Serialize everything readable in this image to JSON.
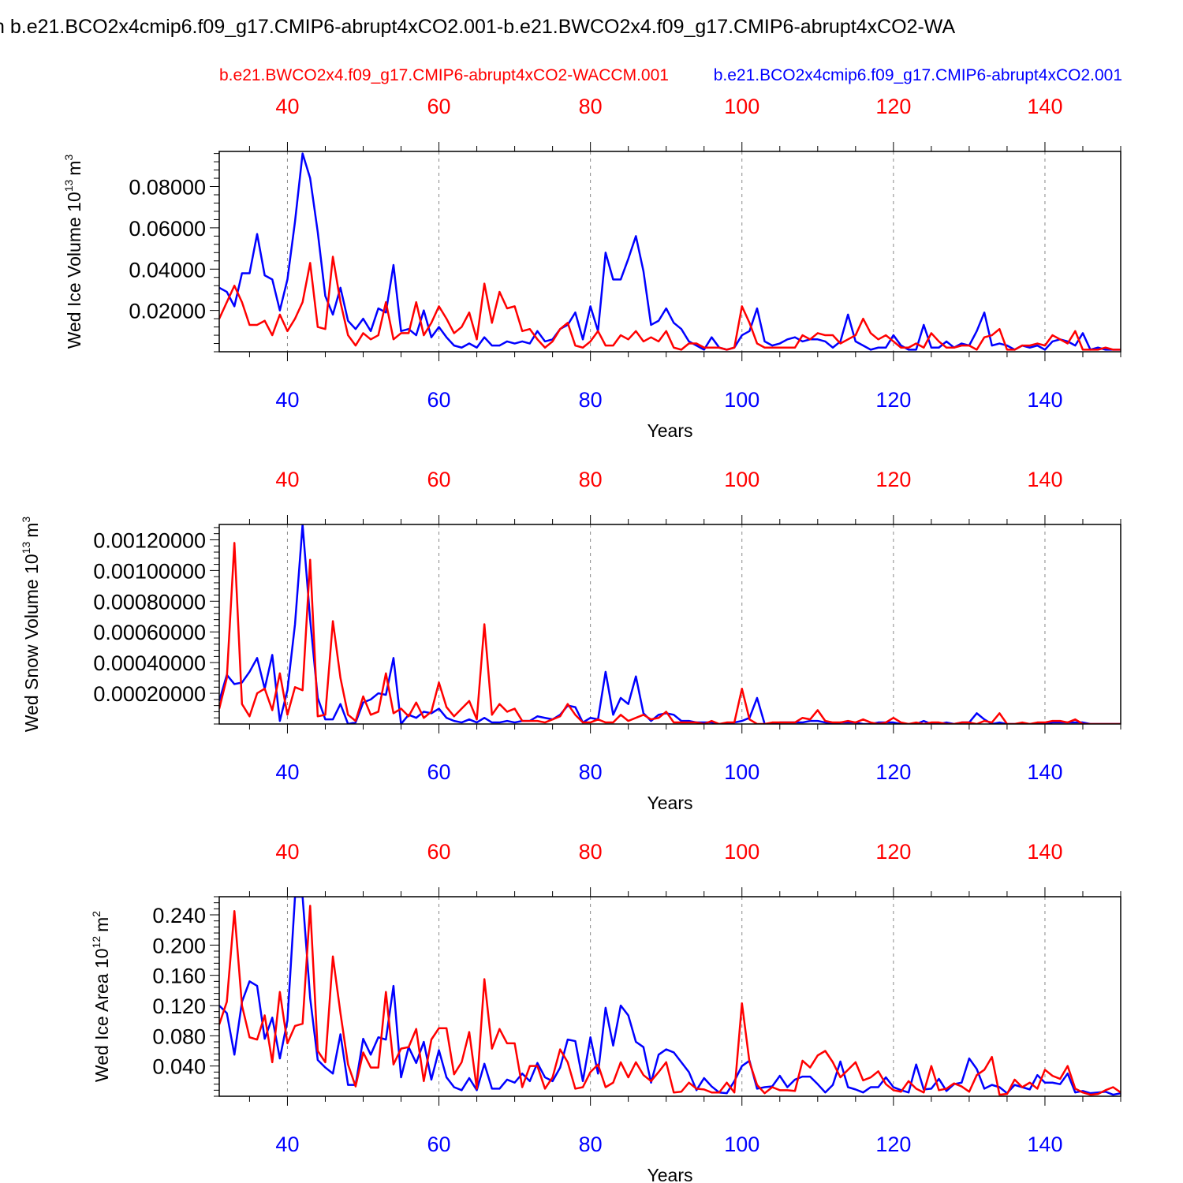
{
  "page": {
    "title": "n b.e21.BCO2x4cmip6.f09_g17.CMIP6-abrupt4xCO2.001-b.e21.BWCO2x4.f09_g17.CMIP6-abrupt4xCO2-WA"
  },
  "legend": {
    "red_label": "b.e21.BWCO2x4.f09_g17.CMIP6-abrupt4xCO2-WACCM.001",
    "blue_label": "b.e21.BCO2x4cmip6.f09_g17.CMIP6-abrupt4xCO2.001"
  },
  "colors": {
    "red": "#ff0000",
    "blue": "#0000ff",
    "axis": "#000000",
    "grid": "#888888"
  },
  "chart_data": [
    {
      "type": "line",
      "ylabel": "Wed Ice Volume 10",
      "ylabel_sup": "13",
      "ylabel_unit": "m",
      "ylabel_unit_sup": "3",
      "xlabel": "Years",
      "xlim": [
        31,
        150
      ],
      "ylim": [
        0,
        0.097
      ],
      "xticks": [
        40,
        60,
        80,
        100,
        120,
        140
      ],
      "xtick_labels": [
        "40",
        "60",
        "80",
        "100",
        "120",
        "140"
      ],
      "yticks": [
        0.02,
        0.04,
        0.06,
        0.08
      ],
      "ytick_labels": [
        "0.02000",
        "0.04000",
        "0.06000",
        "0.08000"
      ],
      "x_start": 31,
      "series": [
        {
          "name": "b.e21.BCO2x4cmip6.f09_g17.CMIP6-abrupt4xCO2.001",
          "color": "blue",
          "values": [
            0.031,
            0.029,
            0.022,
            0.038,
            0.038,
            0.057,
            0.037,
            0.035,
            0.02,
            0.035,
            0.063,
            0.096,
            0.084,
            0.058,
            0.027,
            0.018,
            0.031,
            0.015,
            0.011,
            0.016,
            0.01,
            0.021,
            0.019,
            0.042,
            0.01,
            0.011,
            0.008,
            0.02,
            0.007,
            0.012,
            0.007,
            0.003,
            0.002,
            0.004,
            0.002,
            0.007,
            0.003,
            0.003,
            0.005,
            0.004,
            0.005,
            0.004,
            0.01,
            0.005,
            0.006,
            0.011,
            0.013,
            0.019,
            0.006,
            0.022,
            0.01,
            0.048,
            0.035,
            0.035,
            0.045,
            0.056,
            0.039,
            0.013,
            0.015,
            0.021,
            0.014,
            0.011,
            0.005,
            0.003,
            0.001,
            0.007,
            0.002,
            0.001,
            0.002,
            0.008,
            0.01,
            0.021,
            0.005,
            0.003,
            0.004,
            0.006,
            0.007,
            0.005,
            0.006,
            0.006,
            0.005,
            0.002,
            0.005,
            0.018,
            0.005,
            0.003,
            0.001,
            0.002,
            0.002,
            0.008,
            0.003,
            0.001,
            0.001,
            0.013,
            0.002,
            0.002,
            0.005,
            0.002,
            0.004,
            0.003,
            0.01,
            0.019,
            0.003,
            0.004,
            0.003,
            0.001,
            0.003,
            0.002,
            0.003,
            0.001,
            0.005,
            0.006,
            0.005,
            0.003,
            0.009,
            0.001,
            0.002,
            0.001,
            0.001,
            0.001
          ]
        },
        {
          "name": "b.e21.BWCO2x4.f09_g17.CMIP6-abrupt4xCO2-WACCM.001",
          "color": "red",
          "values": [
            0.016,
            0.024,
            0.032,
            0.024,
            0.013,
            0.013,
            0.015,
            0.008,
            0.018,
            0.01,
            0.016,
            0.024,
            0.043,
            0.012,
            0.011,
            0.046,
            0.024,
            0.008,
            0.003,
            0.009,
            0.006,
            0.008,
            0.024,
            0.006,
            0.009,
            0.009,
            0.024,
            0.008,
            0.014,
            0.022,
            0.016,
            0.009,
            0.012,
            0.019,
            0.006,
            0.033,
            0.014,
            0.029,
            0.021,
            0.022,
            0.01,
            0.011,
            0.006,
            0.002,
            0.005,
            0.011,
            0.014,
            0.003,
            0.002,
            0.005,
            0.01,
            0.003,
            0.003,
            0.008,
            0.006,
            0.01,
            0.005,
            0.007,
            0.005,
            0.01,
            0.002,
            0.001,
            0.004,
            0.004,
            0.002,
            0.002,
            0.002,
            0.001,
            0.002,
            0.022,
            0.014,
            0.004,
            0.002,
            0.002,
            0.002,
            0.002,
            0.002,
            0.008,
            0.006,
            0.009,
            0.008,
            0.008,
            0.004,
            0.006,
            0.008,
            0.016,
            0.009,
            0.006,
            0.008,
            0.005,
            0.002,
            0.002,
            0.004,
            0.002,
            0.009,
            0.005,
            0.002,
            0.002,
            0.003,
            0.003,
            0.001,
            0.007,
            0.008,
            0.011,
            0.001,
            0.001,
            0.003,
            0.003,
            0.004,
            0.003,
            0.008,
            0.006,
            0.004,
            0.01,
            0.001,
            0.001,
            0.001,
            0.002,
            0.001,
            0.001
          ]
        }
      ]
    },
    {
      "type": "line",
      "ylabel": "Wed Snow Volume 10",
      "ylabel_sup": "13",
      "ylabel_unit": "m",
      "ylabel_unit_sup": "3",
      "xlabel": "Years",
      "xlim": [
        31,
        150
      ],
      "ylim": [
        0,
        0.0013
      ],
      "xticks": [
        40,
        60,
        80,
        100,
        120,
        140
      ],
      "xtick_labels": [
        "40",
        "60",
        "80",
        "100",
        "120",
        "140"
      ],
      "yticks": [
        0.0002,
        0.0004,
        0.0006,
        0.0008,
        0.001,
        0.0012
      ],
      "ytick_labels": [
        "0.00020000",
        "0.00040000",
        "0.00060000",
        "0.00080000",
        "0.00100000",
        "0.00120000"
      ],
      "x_start": 31,
      "series": [
        {
          "name": "b.e21.BCO2x4cmip6.f09_g17.CMIP6-abrupt4xCO2.001",
          "color": "blue",
          "values": [
            0.00015,
            0.00032,
            0.00026,
            0.00027,
            0.00034,
            0.00043,
            0.00023,
            0.00045,
            2e-05,
            0.00022,
            0.00065,
            0.0013,
            0.00068,
            0.00017,
            3e-05,
            3e-05,
            0.00013,
            0.0,
            1e-05,
            0.00014,
            0.00016,
            0.0002,
            0.00019,
            0.00043,
            0.0,
            6e-05,
            4e-05,
            8e-05,
            7e-05,
            0.0001,
            4e-05,
            2e-05,
            1e-05,
            3e-05,
            1e-05,
            4e-05,
            1e-05,
            1e-05,
            2e-05,
            1e-05,
            2e-05,
            2e-05,
            5e-05,
            4e-05,
            3e-05,
            6e-05,
            0.00012,
            0.00011,
            1e-05,
            4e-05,
            3e-05,
            0.00034,
            6e-05,
            0.00017,
            0.00013,
            0.00031,
            7e-05,
            2e-05,
            6e-05,
            7e-05,
            6e-05,
            2e-05,
            2e-05,
            1e-05,
            1e-05,
            1e-05,
            0.0,
            0.0,
            1e-05,
            2e-05,
            4e-05,
            0.00017,
            0.0,
            0.0,
            1e-05,
            1e-05,
            1e-05,
            1e-05,
            2e-05,
            2e-05,
            1e-05,
            0.0,
            1e-05,
            1e-05,
            1e-05,
            0.0,
            0.0,
            1e-05,
            1e-05,
            1e-05,
            0.0,
            0.0,
            0.0,
            2e-05,
            0.0,
            0.0,
            1e-05,
            0.0,
            1e-05,
            1e-05,
            7e-05,
            3e-05,
            0.0,
            1e-05,
            0.0,
            0.0,
            0.0,
            0.0,
            0.0,
            0.0,
            1e-05,
            1e-05,
            1e-05,
            1e-05,
            1e-05,
            0.0,
            0.0,
            0.0,
            0.0,
            0.0
          ]
        },
        {
          "name": "b.e21.BWCO2x4.f09_g17.CMIP6-abrupt4xCO2-WACCM.001",
          "color": "red",
          "values": [
            0.0001,
            0.0003,
            0.00118,
            0.00013,
            5e-05,
            0.0002,
            0.00023,
            9e-05,
            0.00033,
            6e-05,
            0.00024,
            0.00022,
            0.00107,
            5e-05,
            6e-05,
            0.00067,
            0.0003,
            6e-05,
            2e-05,
            0.00018,
            6e-05,
            8e-05,
            0.00033,
            7e-05,
            0.0001,
            5e-05,
            0.00014,
            4e-05,
            8e-05,
            0.00027,
            0.00011,
            5e-05,
            0.0001,
            0.00015,
            3e-05,
            0.00065,
            6e-05,
            0.00013,
            8e-05,
            0.0001,
            2e-05,
            2e-05,
            2e-05,
            1e-05,
            3e-05,
            5e-05,
            0.00013,
            6e-05,
            1e-05,
            1e-05,
            3e-05,
            1e-05,
            1e-05,
            6e-05,
            2e-05,
            4e-05,
            6e-05,
            3e-05,
            4e-05,
            8e-05,
            1e-05,
            1e-05,
            1e-05,
            1e-05,
            0.0,
            2e-05,
            0.0,
            1e-05,
            1e-05,
            0.00023,
            3e-05,
            0.0,
            0.0,
            1e-05,
            1e-05,
            1e-05,
            1e-05,
            4e-05,
            3e-05,
            9e-05,
            2e-05,
            1e-05,
            1e-05,
            2e-05,
            1e-05,
            3e-05,
            1e-05,
            0.0,
            1e-05,
            4e-05,
            1e-05,
            0.0,
            1e-05,
            0.0,
            1e-05,
            1e-05,
            0.0,
            0.0,
            1e-05,
            1e-05,
            0.0,
            2e-05,
            1e-05,
            7e-05,
            0.0,
            0.0,
            1e-05,
            0.0,
            1e-05,
            1e-05,
            2e-05,
            2e-05,
            1e-05,
            3e-05,
            0.0,
            0.0,
            0.0,
            0.0,
            0.0,
            0.0
          ]
        }
      ]
    },
    {
      "type": "line",
      "ylabel": "Wed Ice Area 10",
      "ylabel_sup": "12",
      "ylabel_unit": "m",
      "ylabel_unit_sup": "2",
      "xlabel": "Years",
      "xlim": [
        31,
        150
      ],
      "ylim": [
        0,
        0.264
      ],
      "xticks": [
        40,
        60,
        80,
        100,
        120,
        140
      ],
      "xtick_labels": [
        "40",
        "60",
        "80",
        "100",
        "120",
        "140"
      ],
      "yticks": [
        0.04,
        0.08,
        0.12,
        0.16,
        0.2,
        0.24
      ],
      "ytick_labels": [
        "0.040",
        "0.080",
        "0.120",
        "0.160",
        "0.200",
        "0.240"
      ],
      "x_start": 31,
      "series": [
        {
          "name": "b.e21.BCO2x4cmip6.f09_g17.CMIP6-abrupt4xCO2.001",
          "color": "blue",
          "values": [
            0.12,
            0.11,
            0.055,
            0.125,
            0.152,
            0.146,
            0.076,
            0.104,
            0.05,
            0.1,
            0.264,
            0.264,
            0.13,
            0.048,
            0.038,
            0.03,
            0.082,
            0.015,
            0.015,
            0.076,
            0.055,
            0.078,
            0.075,
            0.146,
            0.025,
            0.065,
            0.044,
            0.072,
            0.022,
            0.061,
            0.025,
            0.012,
            0.008,
            0.024,
            0.008,
            0.043,
            0.01,
            0.01,
            0.022,
            0.018,
            0.03,
            0.02,
            0.044,
            0.025,
            0.02,
            0.038,
            0.075,
            0.073,
            0.02,
            0.078,
            0.03,
            0.117,
            0.067,
            0.12,
            0.107,
            0.072,
            0.065,
            0.018,
            0.055,
            0.062,
            0.058,
            0.045,
            0.032,
            0.008,
            0.024,
            0.013,
            0.005,
            0.004,
            0.02,
            0.04,
            0.047,
            0.01,
            0.012,
            0.013,
            0.027,
            0.012,
            0.022,
            0.026,
            0.026,
            0.016,
            0.005,
            0.015,
            0.046,
            0.012,
            0.009,
            0.005,
            0.012,
            0.012,
            0.025,
            0.012,
            0.008,
            0.005,
            0.042,
            0.009,
            0.01,
            0.023,
            0.007,
            0.016,
            0.018,
            0.05,
            0.036,
            0.01,
            0.015,
            0.012,
            0.004,
            0.015,
            0.012,
            0.009,
            0.028,
            0.018,
            0.018,
            0.016,
            0.03,
            0.005,
            0.007,
            0.004,
            0.005,
            0.006,
            0.002,
            0.004
          ]
        },
        {
          "name": "b.e21.BWCO2x4.f09_g17.CMIP6-abrupt4xCO2-WACCM.001",
          "color": "red",
          "values": [
            0.095,
            0.125,
            0.245,
            0.12,
            0.078,
            0.075,
            0.107,
            0.045,
            0.138,
            0.07,
            0.093,
            0.096,
            0.252,
            0.06,
            0.045,
            0.185,
            0.11,
            0.042,
            0.013,
            0.058,
            0.038,
            0.038,
            0.138,
            0.042,
            0.063,
            0.065,
            0.089,
            0.02,
            0.075,
            0.09,
            0.09,
            0.029,
            0.045,
            0.085,
            0.01,
            0.155,
            0.063,
            0.089,
            0.07,
            0.07,
            0.012,
            0.04,
            0.04,
            0.01,
            0.025,
            0.062,
            0.045,
            0.01,
            0.012,
            0.032,
            0.042,
            0.012,
            0.018,
            0.045,
            0.025,
            0.045,
            0.028,
            0.02,
            0.032,
            0.045,
            0.005,
            0.006,
            0.018,
            0.01,
            0.009,
            0.005,
            0.005,
            0.018,
            0.005,
            0.123,
            0.045,
            0.015,
            0.004,
            0.012,
            0.008,
            0.008,
            0.007,
            0.047,
            0.038,
            0.054,
            0.06,
            0.045,
            0.025,
            0.035,
            0.045,
            0.021,
            0.025,
            0.033,
            0.016,
            0.008,
            0.006,
            0.02,
            0.01,
            0.005,
            0.04,
            0.008,
            0.01,
            0.017,
            0.013,
            0.006,
            0.028,
            0.035,
            0.052,
            0.002,
            0.003,
            0.022,
            0.012,
            0.018,
            0.01,
            0.035,
            0.027,
            0.023,
            0.04,
            0.01,
            0.005,
            0.002,
            0.003,
            0.008,
            0.012,
            0.005
          ]
        }
      ]
    }
  ]
}
